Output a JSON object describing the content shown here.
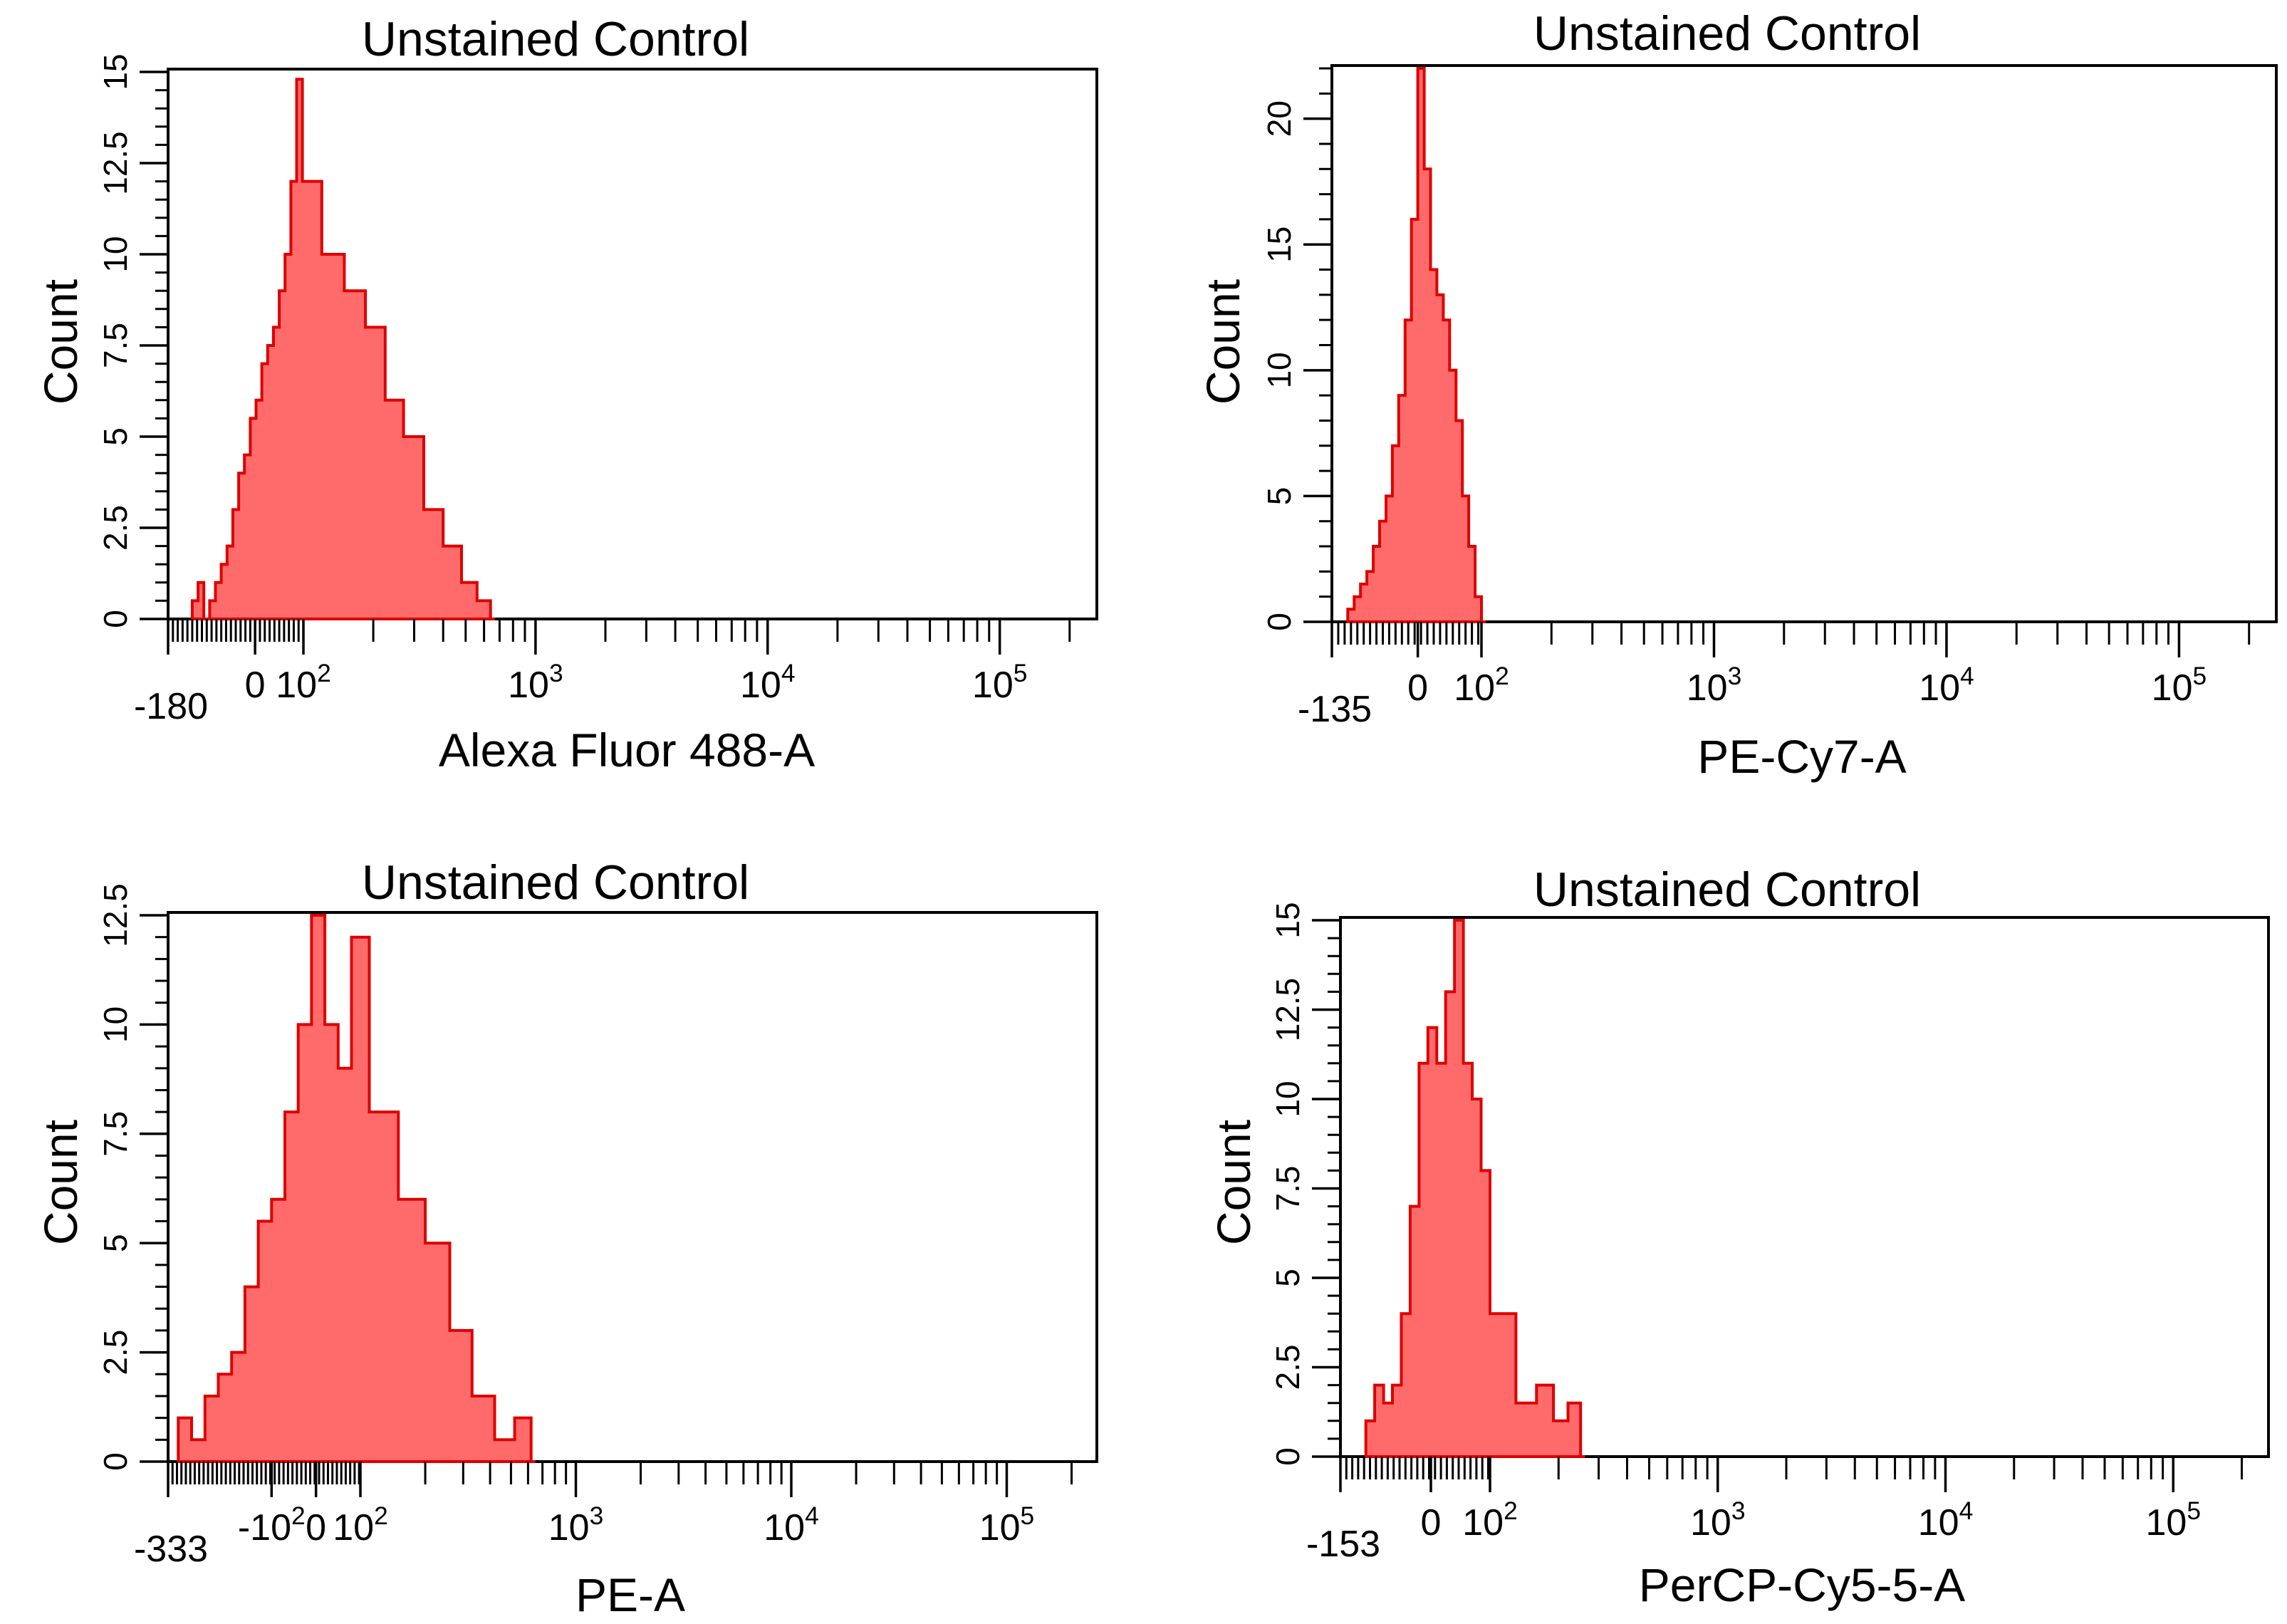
{
  "chart_data": [
    {
      "type": "histogram",
      "title": "Unstained Control",
      "xlabel": "Alexa Fluor 488-A",
      "ylabel": "Count",
      "ylim": [
        0,
        15
      ],
      "yticks": [
        "0",
        "2.5",
        "5",
        "7.5",
        "10",
        "12.5",
        "15"
      ],
      "xlim": [
        -180,
        262000
      ],
      "xticks": [
        {
          "label": "-180",
          "value": -180
        },
        {
          "label": "0",
          "value": 0
        },
        {
          "label": "10^2",
          "value": 100
        },
        {
          "label": "10^3",
          "value": 1000
        },
        {
          "label": "10^4",
          "value": 10000
        },
        {
          "label": "10^5",
          "value": 100000
        }
      ],
      "color": "#ff6b6b",
      "edge_color": "#dd0000",
      "series": [
        {
          "name": "Unstained Control",
          "x": [
            -130,
            -118,
            -106,
            -94,
            -82,
            -70,
            -58,
            -46,
            -34,
            -22,
            -10,
            2,
            14,
            26,
            38,
            50,
            62,
            74,
            86,
            98,
            120,
            150,
            185,
            225,
            270,
            330,
            400,
            480,
            560,
            640
          ],
          "values": [
            0.5,
            1,
            0,
            0.5,
            1,
            1.5,
            2,
            3,
            4,
            4.5,
            5.5,
            6,
            7,
            7.5,
            8,
            9,
            10,
            12,
            14.8,
            12,
            10,
            9,
            8,
            6,
            5,
            3,
            2,
            1,
            0.5,
            0
          ]
        }
      ]
    },
    {
      "type": "histogram",
      "title": "Unstained Control",
      "xlabel": "PE-Cy7-A",
      "ylabel": "Count",
      "ylim": [
        0,
        22
      ],
      "yticks": [
        "0",
        "5",
        "10",
        "15",
        "20"
      ],
      "xlim": [
        -135,
        262000
      ],
      "xticks": [
        {
          "label": "-135",
          "value": -135
        },
        {
          "label": "0",
          "value": 0
        },
        {
          "label": "10^2",
          "value": 100
        },
        {
          "label": "10^3",
          "value": 1000
        },
        {
          "label": "10^4",
          "value": 10000
        },
        {
          "label": "10^5",
          "value": 100000
        }
      ],
      "color": "#ff6b6b",
      "edge_color": "#dd0000",
      "series": [
        {
          "name": "Unstained Control",
          "x": [
            -110,
            -100,
            -90,
            -80,
            -70,
            -60,
            -50,
            -40,
            -30,
            -20,
            -10,
            0,
            10,
            20,
            30,
            40,
            50,
            60,
            70,
            80,
            90,
            100
          ],
          "values": [
            0.5,
            1,
            1.5,
            2,
            3,
            4,
            5,
            7,
            9,
            12,
            16,
            22,
            18,
            14,
            13,
            12,
            10,
            8,
            5,
            3,
            1,
            0
          ]
        }
      ]
    },
    {
      "type": "histogram",
      "title": "Unstained Control",
      "xlabel": "PE-A",
      "ylabel": "Count",
      "ylim": [
        0,
        12.5
      ],
      "yticks": [
        "0",
        "2.5",
        "5",
        "7.5",
        "10",
        "12.5"
      ],
      "xlim": [
        -333,
        262000
      ],
      "xticks": [
        {
          "label": "-333",
          "value": -333
        },
        {
          "label": "-10^2",
          "value": -100
        },
        {
          "label": "0",
          "value": 0
        },
        {
          "label": "10^2",
          "value": 100
        },
        {
          "label": "10^3",
          "value": 1000
        },
        {
          "label": "10^4",
          "value": 10000
        },
        {
          "label": "10^5",
          "value": 100000
        }
      ],
      "color": "#ff6b6b",
      "edge_color": "#dd0000",
      "series": [
        {
          "name": "Unstained Control",
          "x": [
            -310,
            -280,
            -250,
            -220,
            -190,
            -160,
            -130,
            -100,
            -70,
            -40,
            -10,
            20,
            50,
            80,
            110,
            150,
            200,
            260,
            330,
            420,
            520,
            620
          ],
          "values": [
            1,
            0.5,
            1.5,
            2,
            2.5,
            4,
            5.5,
            6,
            8,
            10,
            12.5,
            10,
            9,
            12,
            8,
            6,
            5,
            3,
            1.5,
            0.5,
            1,
            0
          ]
        }
      ]
    },
    {
      "type": "histogram",
      "title": "Unstained Control",
      "xlabel": "PerCP-Cy5-5-A",
      "ylabel": "Count",
      "ylim": [
        0,
        15
      ],
      "yticks": [
        "0",
        "2.5",
        "5",
        "7.5",
        "10",
        "12.5",
        "15"
      ],
      "xlim": [
        -153,
        262000
      ],
      "xticks": [
        {
          "label": "-153",
          "value": -153
        },
        {
          "label": "0",
          "value": 0
        },
        {
          "label": "10^2",
          "value": 100
        },
        {
          "label": "10^3",
          "value": 1000
        },
        {
          "label": "10^4",
          "value": 10000
        },
        {
          "label": "10^5",
          "value": 100000
        }
      ],
      "color": "#ff6b6b",
      "edge_color": "#dd0000",
      "series": [
        {
          "name": "Unstained Control",
          "x": [
            -110,
            -95,
            -80,
            -65,
            -50,
            -35,
            -20,
            -5,
            10,
            25,
            40,
            55,
            70,
            85,
            100,
            130,
            160,
            190,
            220,
            250
          ],
          "values": [
            1,
            2,
            1.5,
            2,
            4,
            7,
            11,
            12,
            11,
            13,
            15,
            11,
            10,
            8,
            4,
            1.5,
            2,
            1,
            1.5,
            0
          ]
        }
      ]
    }
  ]
}
